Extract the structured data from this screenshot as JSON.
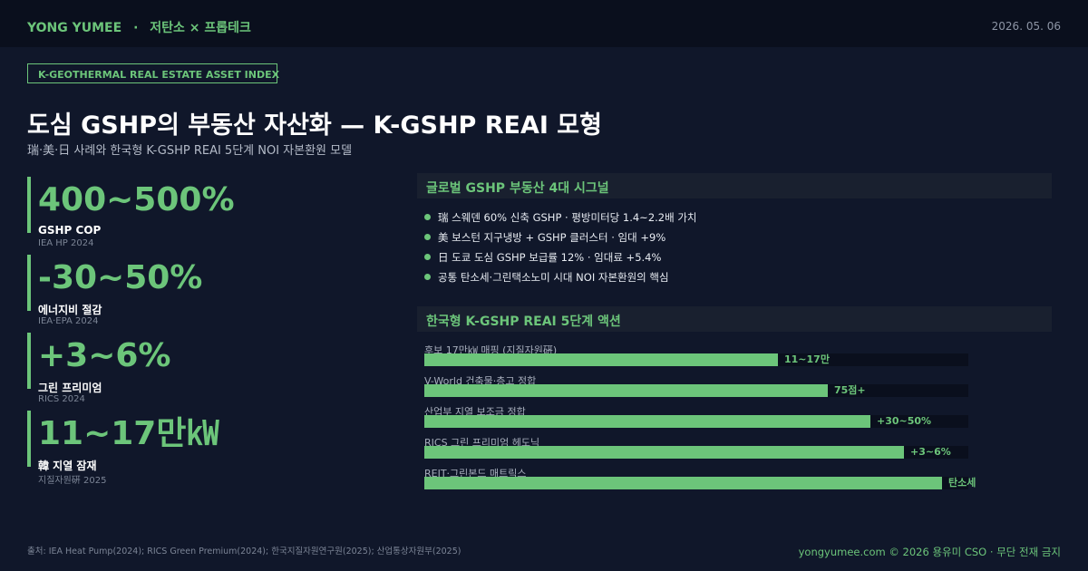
{
  "header": {
    "brand": "YONG YUMEE",
    "separator": "·",
    "topic": "저탄소 × 프롭테크",
    "date": "2026. 05. 06"
  },
  "tag": "K-GEOTHERMAL REAL ESTATE ASSET INDEX",
  "title": "도심 GSHP의 부동산 자산화 — K-GSHP REAI 모형",
  "subtitle": "瑞·美·日 사례와 한국형 K-GSHP REAI 5단계 NOI 자본환원 모델",
  "stats": [
    {
      "value": "400~500%",
      "label": "GSHP COP",
      "source": "IEA HP 2024"
    },
    {
      "value": "-30~50%",
      "label": "에너지비 절감",
      "source": "IEA·EPA 2024"
    },
    {
      "value": "+3~6%",
      "label": "그린 프리미엄",
      "source": "RICS 2024"
    },
    {
      "value": "11~17만㎾",
      "label": "韓 지열 잠재",
      "source": "지질자원硏 2025"
    }
  ],
  "signals": {
    "title": "글로벌 GSHP 부동산 4대 시그널",
    "items": [
      "瑞 스웨덴 60% 신축 GSHP · 평방미터당 1.4~2.2배 가치",
      "美 보스턴 지구냉방 + GSHP 클러스터 · 임대 +9%",
      "日 도쿄 도심 GSHP 보급률 12% · 임대료 +5.4%",
      "공통 탄소세·그린택소노미 시대 NOI 자본환원의 핵심"
    ]
  },
  "actions": {
    "title": "한국형 K-GSHP REAI 5단계 액션",
    "steps": [
      {
        "label": "후보 17만㎾ 매핑 (지질자원硏)",
        "value": "11~17만"
      },
      {
        "label": "V-World 건축물·층고 정합",
        "value": "75점+"
      },
      {
        "label": "산업부 지열 보조금 정합",
        "value": "+30~50%"
      },
      {
        "label": "RICS 그린 프리미엄 헤도닉",
        "value": "+3~6%"
      },
      {
        "label": "REIT·그린본드 매트릭스",
        "value": "탄소세"
      }
    ]
  },
  "footer": {
    "source": "출처: IEA Heat Pump(2024); RICS Green Premium(2024); 한국지질자원연구원(2025); 산업통상자원부(2025)",
    "credit": "yongyumee.com © 2026 용유미 CSO · 무단 전재 금지"
  }
}
